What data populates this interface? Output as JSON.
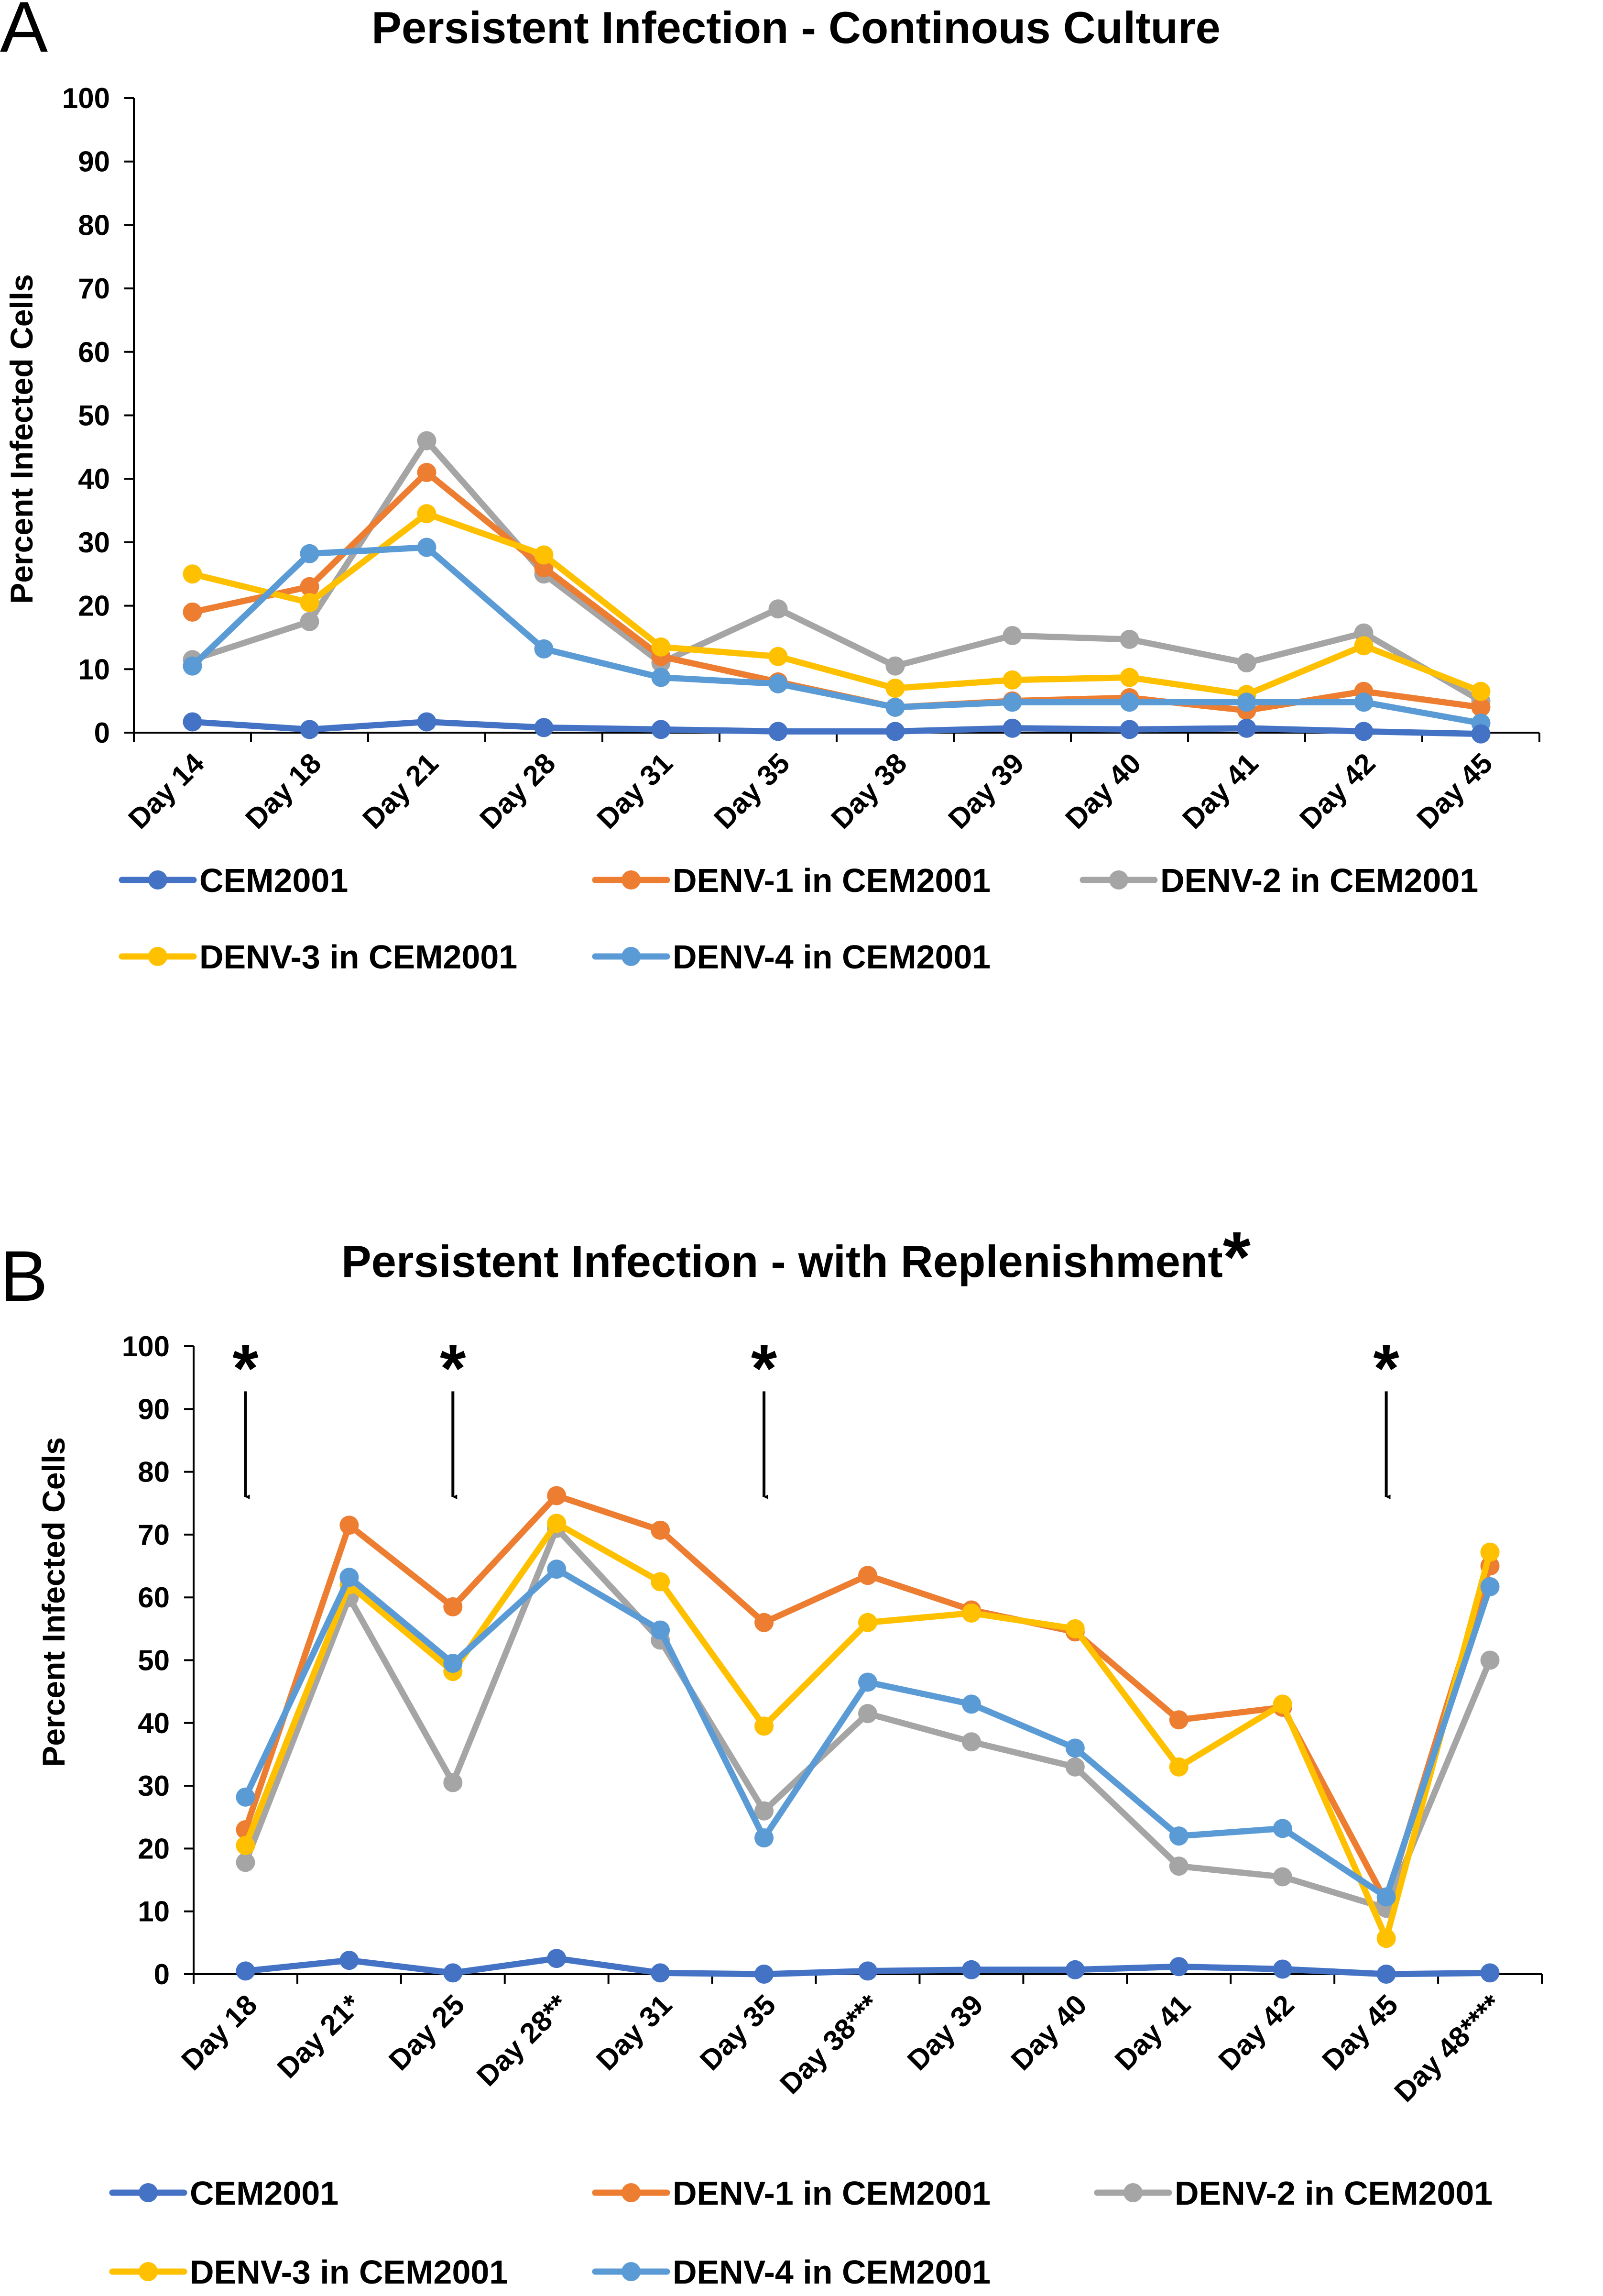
{
  "chart_data": [
    {
      "type": "line",
      "panel": "A",
      "title": "Persistent Infection - Continous Culture",
      "title_mark": "",
      "ylabel": "Percent Infected Cells",
      "xlabel": "",
      "ylim": [
        0,
        100
      ],
      "yticks": [
        0,
        10,
        20,
        30,
        40,
        50,
        60,
        70,
        80,
        90,
        100
      ],
      "categories": [
        "Day 14",
        "Day 18",
        "Day 21",
        "Day 28",
        "Day 31",
        "Day 35",
        "Day 38",
        "Day 39",
        "Day 40",
        "Day 41",
        "Day 42",
        "Day 45"
      ],
      "series": [
        {
          "name": "DENV-2 in CEM2001",
          "color": "#a5a5a5",
          "values": [
            11.5,
            17.5,
            46,
            25,
            11,
            19.5,
            10.5,
            15.3,
            14.7,
            11,
            15.7,
            5
          ]
        },
        {
          "name": "DENV-1 in CEM2001",
          "color": "#ed7d31",
          "values": [
            19,
            23,
            41,
            26,
            12,
            8,
            4,
            5,
            5.5,
            3.5,
            6.5,
            4
          ]
        },
        {
          "name": "DENV-3 in CEM2001",
          "color": "#ffc000",
          "values": [
            25,
            20.5,
            34.5,
            28,
            13.5,
            12,
            7,
            8.3,
            8.7,
            6,
            13.7,
            6.5
          ]
        },
        {
          "name": "DENV-4 in CEM2001",
          "color": "#5b9bd5",
          "values": [
            10.5,
            28.2,
            29.2,
            13.2,
            8.7,
            7.7,
            4,
            4.8,
            4.8,
            4.8,
            4.8,
            1.5
          ]
        },
        {
          "name": "CEM2001",
          "color": "#4472c4",
          "values": [
            1.7,
            0.5,
            1.7,
            0.8,
            0.5,
            0.2,
            0.2,
            0.7,
            0.5,
            0.7,
            0.2,
            -0.2
          ]
        }
      ],
      "legend": [
        {
          "name": "CEM2001",
          "color": "#4472c4"
        },
        {
          "name": "DENV-1 in CEM2001",
          "color": "#ed7d31"
        },
        {
          "name": "DENV-2 in CEM2001",
          "color": "#a5a5a5"
        },
        {
          "name": "DENV-3 in CEM2001",
          "color": "#ffc000"
        },
        {
          "name": "DENV-4 in CEM2001",
          "color": "#5b9bd5"
        }
      ],
      "annotations": []
    },
    {
      "type": "line",
      "panel": "B",
      "title": "Persistent Infection - with Replenishment",
      "title_mark": "*",
      "ylabel": "Percent Infected Cells",
      "xlabel": "",
      "ylim": [
        0,
        100
      ],
      "yticks": [
        0,
        10,
        20,
        30,
        40,
        50,
        60,
        70,
        80,
        90,
        100
      ],
      "categories": [
        "Day 18",
        "Day 21*",
        "Day 25",
        "Day 28**",
        "Day 31",
        "Day 35",
        "Day 38***",
        "Day 39",
        "Day 40",
        "Day 41",
        "Day 42",
        "Day 45",
        "Day 48****"
      ],
      "series": [
        {
          "name": "DENV-1 in CEM2001",
          "color": "#ed7d31",
          "values": [
            23,
            71.5,
            58.5,
            76.2,
            70.7,
            56,
            63.5,
            58,
            54.5,
            40.5,
            42.5,
            11.5,
            65
          ]
        },
        {
          "name": "DENV-2 in CEM2001",
          "color": "#a5a5a5",
          "values": [
            17.8,
            60,
            30.5,
            71,
            53.2,
            26,
            41.5,
            37,
            33,
            17.2,
            15.5,
            10.5,
            50
          ]
        },
        {
          "name": "DENV-3 in CEM2001",
          "color": "#ffc000",
          "values": [
            20.5,
            62,
            48.2,
            71.8,
            62.5,
            39.5,
            56,
            57.5,
            55,
            33,
            43,
            5.7,
            67.2
          ]
        },
        {
          "name": "DENV-4 in CEM2001",
          "color": "#5b9bd5",
          "values": [
            28.2,
            63.2,
            49.5,
            64.5,
            54.8,
            21.7,
            46.5,
            43,
            36,
            22,
            23.2,
            12.3,
            61.7
          ]
        },
        {
          "name": "CEM2001",
          "color": "#4472c4",
          "values": [
            0.5,
            2.2,
            0.2,
            2.5,
            0.2,
            0,
            0.5,
            0.7,
            0.7,
            1.2,
            0.8,
            0,
            0.2
          ]
        }
      ],
      "legend": [
        {
          "name": "CEM2001",
          "color": "#4472c4"
        },
        {
          "name": "DENV-1 in CEM2001",
          "color": "#ed7d31"
        },
        {
          "name": "DENV-2 in CEM2001",
          "color": "#a5a5a5"
        },
        {
          "name": "DENV-3 in CEM2001",
          "color": "#ffc000"
        },
        {
          "name": "DENV-4 in CEM2001",
          "color": "#5b9bd5"
        }
      ],
      "annotations": [
        {
          "label": "*",
          "category_index": 0,
          "y_top": 97,
          "y_bottom": 76
        },
        {
          "label": "*",
          "category_index": 2,
          "y_top": 97,
          "y_bottom": 76
        },
        {
          "label": "*",
          "category_index": 5,
          "y_top": 97,
          "y_bottom": 76
        },
        {
          "label": "*",
          "category_index": 11,
          "y_top": 97,
          "y_bottom": 76
        }
      ]
    }
  ]
}
